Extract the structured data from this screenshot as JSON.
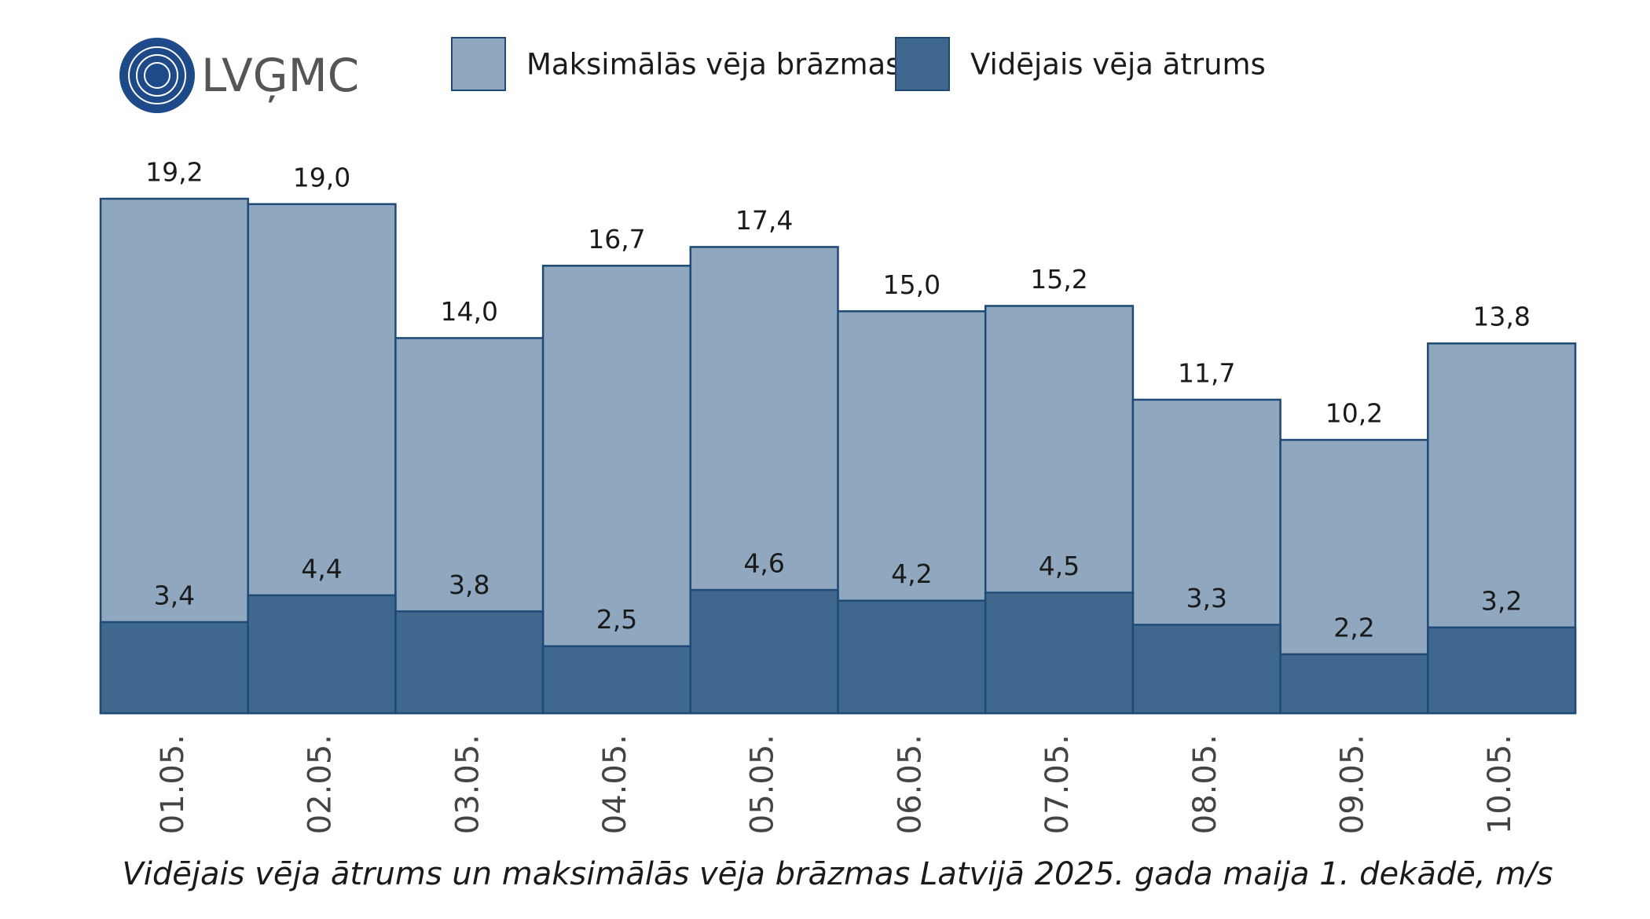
{
  "logo": "LVĢMC",
  "chart_data": {
    "type": "overlap_bar",
    "title": "Vidējais vēja ātrums un maksimālās vēja brāzmas Latvijā 2025. gada maija 1. dekādē, m/s",
    "categories": [
      "01.05.",
      "02.05.",
      "03.05.",
      "04.05.",
      "05.05.",
      "06.05.",
      "07.05.",
      "08.05.",
      "09.05.",
      "10.05."
    ],
    "series": [
      {
        "name": "Maksimālās vēja brāzmas",
        "color": "#8fa7bf",
        "values": [
          19.2,
          19.0,
          14.0,
          16.7,
          17.4,
          15.0,
          15.2,
          11.7,
          10.2,
          13.8
        ],
        "value_labels": [
          "19,2",
          "19,0",
          "14,0",
          "16,7",
          "17,4",
          "15,0",
          "15,2",
          "11,7",
          "10,2",
          "13,8"
        ]
      },
      {
        "name": "Vidējais vēja ātrums",
        "color": "#40678d",
        "values": [
          3.4,
          4.4,
          3.8,
          2.5,
          4.6,
          4.2,
          4.5,
          3.3,
          2.2,
          3.2
        ],
        "value_labels": [
          "3,4",
          "4,4",
          "3,8",
          "2,5",
          "4,6",
          "4,2",
          "4,5",
          "3,3",
          "2,2",
          "3,2"
        ]
      }
    ],
    "legend": "top"
  }
}
